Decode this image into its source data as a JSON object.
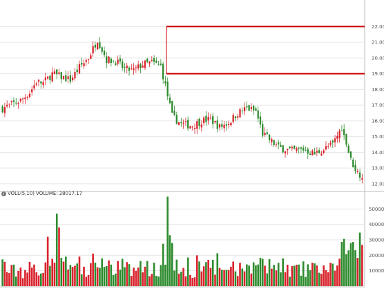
{
  "colors": {
    "up": "#d9232d",
    "down": "#2e8b2e",
    "grid": "#e6e6e6",
    "axis": "#bbbbbb",
    "resistance": "#cc0000"
  },
  "volume_panel": {
    "icon": "settings-icon",
    "label": "VOLL(5,10)",
    "volume_caption": "VOLUME:",
    "volume_value": "28017.17"
  },
  "chart_data": [
    {
      "type": "candlestick",
      "ylim": [
        11.6,
        23.6
      ],
      "y_ticks": [
        "12.00",
        "13.00",
        "14.00",
        "15.00",
        "16.00",
        "17.00",
        "18.00",
        "19.00",
        "20.00",
        "21.00",
        "22.00"
      ],
      "y_tick_values": [
        12,
        13,
        14,
        15,
        16,
        17,
        18,
        19,
        20,
        21,
        22
      ],
      "grid": true,
      "horizontal_lines": [
        22.0,
        19.0
      ],
      "n_bars": 160,
      "anchors": [
        [
          0,
          16.8
        ],
        [
          8,
          17.3
        ],
        [
          12,
          17.8
        ],
        [
          15,
          18.5
        ],
        [
          18,
          18.4
        ],
        [
          22,
          19.0
        ],
        [
          26,
          18.8
        ],
        [
          30,
          18.6
        ],
        [
          34,
          19.4
        ],
        [
          38,
          20.0
        ],
        [
          42,
          21.2
        ],
        [
          46,
          19.9
        ],
        [
          50,
          19.8
        ],
        [
          54,
          19.3
        ],
        [
          58,
          19.2
        ],
        [
          62,
          19.6
        ],
        [
          66,
          19.7
        ],
        [
          70,
          19.5
        ],
        [
          73,
          17.6
        ],
        [
          75,
          16.3
        ],
        [
          79,
          15.8
        ],
        [
          84,
          15.7
        ],
        [
          88,
          16.0
        ],
        [
          92,
          16.1
        ],
        [
          96,
          15.6
        ],
        [
          100,
          15.9
        ],
        [
          104,
          16.5
        ],
        [
          108,
          16.8
        ],
        [
          112,
          16.6
        ],
        [
          115,
          15.2
        ],
        [
          118,
          14.8
        ],
        [
          122,
          14.3
        ],
        [
          128,
          14.1
        ],
        [
          133,
          14.2
        ],
        [
          138,
          13.9
        ],
        [
          142,
          14.2
        ],
        [
          146,
          14.5
        ],
        [
          150,
          15.6
        ],
        [
          154,
          13.5
        ],
        [
          157,
          12.7
        ],
        [
          160,
          12.5
        ]
      ]
    },
    {
      "type": "bar",
      "ylim": [
        0,
        60000
      ],
      "y_ticks": [
        "10000",
        "20000",
        "30000",
        "40000",
        "50000"
      ],
      "y_tick_values": [
        10000,
        20000,
        30000,
        40000,
        50000
      ],
      "grid": true
    }
  ]
}
